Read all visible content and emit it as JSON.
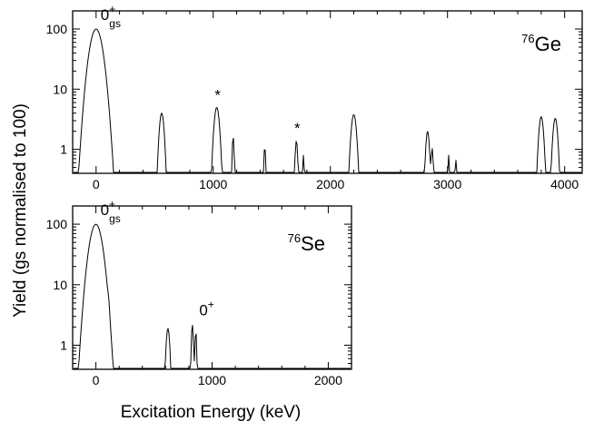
{
  "figure": {
    "ylabel": "Yield (gs normalised to 100)",
    "xlabel": "Excitation Energy (keV)"
  },
  "chart_data": [
    {
      "type": "line",
      "panel": "top",
      "title": "76Ge",
      "title_sup": "76",
      "title_base": "Ge",
      "yscale": "log",
      "xlim": [
        -200,
        4150
      ],
      "ylim": [
        0.4,
        200
      ],
      "xticks": [
        0,
        1000,
        2000,
        3000,
        4000
      ],
      "yticks": [
        1,
        10,
        100
      ],
      "ytick_labels": [
        "1",
        "10",
        "100"
      ],
      "peaks": [
        {
          "energy": 0,
          "yield": 100,
          "width": 45
        },
        {
          "energy": 560,
          "yield": 4.0,
          "width": 18
        },
        {
          "energy": 1030,
          "yield": 5.0,
          "width": 20
        },
        {
          "energy": 1170,
          "yield": 1.6,
          "width": 8
        },
        {
          "energy": 1440,
          "yield": 1.1,
          "width": 8
        },
        {
          "energy": 1710,
          "yield": 1.4,
          "width": 10
        },
        {
          "energy": 1770,
          "yield": 0.8,
          "width": 7
        },
        {
          "energy": 2200,
          "yield": 3.8,
          "width": 20
        },
        {
          "energy": 2830,
          "yield": 2.0,
          "width": 14
        },
        {
          "energy": 2870,
          "yield": 1.0,
          "width": 8
        },
        {
          "energy": 3010,
          "yield": 0.8,
          "width": 7
        },
        {
          "energy": 3070,
          "yield": 0.7,
          "width": 6
        },
        {
          "energy": 3800,
          "yield": 3.5,
          "width": 18
        },
        {
          "energy": 3920,
          "yield": 3.3,
          "width": 18
        }
      ],
      "annotations": [
        {
          "text": "0",
          "sup": "+",
          "sub": "gs",
          "x": 0,
          "y": 100,
          "kind": "state"
        },
        {
          "text": "*",
          "x": 1030,
          "y": 5.0,
          "kind": "marker"
        },
        {
          "text": "*",
          "x": 1710,
          "y": 1.4,
          "kind": "marker"
        }
      ]
    },
    {
      "type": "line",
      "panel": "bottom",
      "title": "76Se",
      "title_sup": "76",
      "title_base": "Se",
      "yscale": "log",
      "xlim": [
        -200,
        2200
      ],
      "ylim": [
        0.4,
        200
      ],
      "xticks": [
        0,
        1000,
        2000
      ],
      "yticks": [
        1,
        10,
        100
      ],
      "ytick_labels": [
        "1",
        "10",
        "100"
      ],
      "peaks": [
        {
          "energy": 0,
          "yield": 100,
          "width": 45
        },
        {
          "energy": 110,
          "yield": 1.2,
          "width": 6
        },
        {
          "energy": 620,
          "yield": 1.9,
          "width": 14
        },
        {
          "energy": 830,
          "yield": 2.2,
          "width": 8
        },
        {
          "energy": 860,
          "yield": 1.7,
          "width": 7
        }
      ],
      "annotations": [
        {
          "text": "0",
          "sup": "+",
          "sub": "gs",
          "x": 0,
          "y": 100,
          "kind": "state"
        },
        {
          "text": "0",
          "sup": "+",
          "x": 850,
          "y": 2.2,
          "kind": "state"
        }
      ]
    }
  ]
}
